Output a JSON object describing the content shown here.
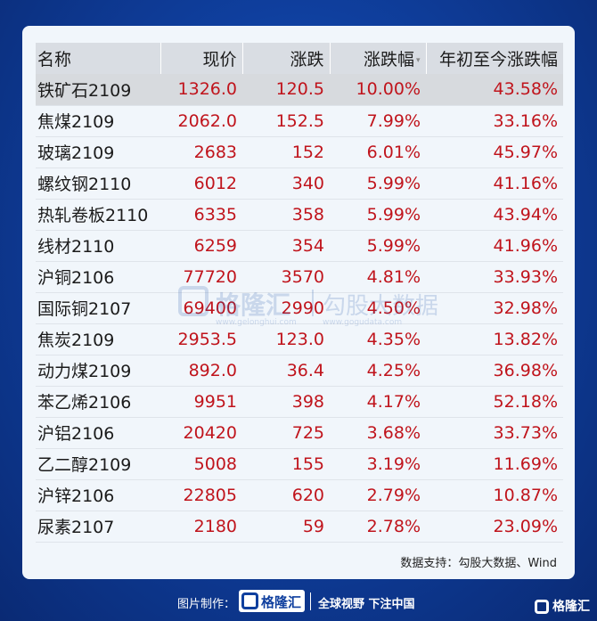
{
  "table": {
    "headers": [
      "名称",
      "现价",
      "涨跌",
      "涨跌幅",
      "年初至今涨跌幅"
    ],
    "sort_indicator": "▾",
    "rows": [
      {
        "name": "铁矿石2109",
        "price": "1326.0",
        "change": "120.5",
        "pct": "10.00%",
        "ytd": "43.58%"
      },
      {
        "name": "焦煤2109",
        "price": "2062.0",
        "change": "152.5",
        "pct": "7.99%",
        "ytd": "33.16%"
      },
      {
        "name": "玻璃2109",
        "price": "2683",
        "change": "152",
        "pct": "6.01%",
        "ytd": "45.97%"
      },
      {
        "name": "螺纹钢2110",
        "price": "6012",
        "change": "340",
        "pct": "5.99%",
        "ytd": "41.16%"
      },
      {
        "name": "热轧卷板2110",
        "price": "6335",
        "change": "358",
        "pct": "5.99%",
        "ytd": "43.94%"
      },
      {
        "name": "线材2110",
        "price": "6259",
        "change": "354",
        "pct": "5.99%",
        "ytd": "41.96%"
      },
      {
        "name": "沪铜2106",
        "price": "77720",
        "change": "3570",
        "pct": "4.81%",
        "ytd": "33.93%"
      },
      {
        "name": "国际铜2107",
        "price": "69400",
        "change": "2990",
        "pct": "4.50%",
        "ytd": "32.98%"
      },
      {
        "name": "焦炭2109",
        "price": "2953.5",
        "change": "123.0",
        "pct": "4.35%",
        "ytd": "13.82%"
      },
      {
        "name": "动力煤2109",
        "price": "892.0",
        "change": "36.4",
        "pct": "4.25%",
        "ytd": "36.98%"
      },
      {
        "name": "苯乙烯2106",
        "price": "9951",
        "change": "398",
        "pct": "4.17%",
        "ytd": "52.18%"
      },
      {
        "name": "沪铝2106",
        "price": "20420",
        "change": "725",
        "pct": "3.68%",
        "ytd": "33.73%"
      },
      {
        "name": "乙二醇2109",
        "price": "5008",
        "change": "155",
        "pct": "3.19%",
        "ytd": "11.69%"
      },
      {
        "name": "沪锌2106",
        "price": "22805",
        "change": "620",
        "pct": "2.79%",
        "ytd": "10.87%"
      },
      {
        "name": "尿素2107",
        "price": "2180",
        "change": "59",
        "pct": "2.78%",
        "ytd": "23.09%"
      }
    ]
  },
  "source": "数据支持：勾股大数据、Wind",
  "watermark": {
    "brand": "格隆汇",
    "sub": "勾股大数据",
    "url_left": "www.gelonghui.com",
    "url_right": "www.gogudata.com"
  },
  "footer": {
    "made_by_label": "图片制作：",
    "logo_text": "格隆汇",
    "slogan": "全球视野 下注中国",
    "corner_brand": "格隆汇"
  },
  "colors": {
    "positive": "#c0141c",
    "header_bg": "#d9dde3",
    "background": "#0f3f9e"
  }
}
